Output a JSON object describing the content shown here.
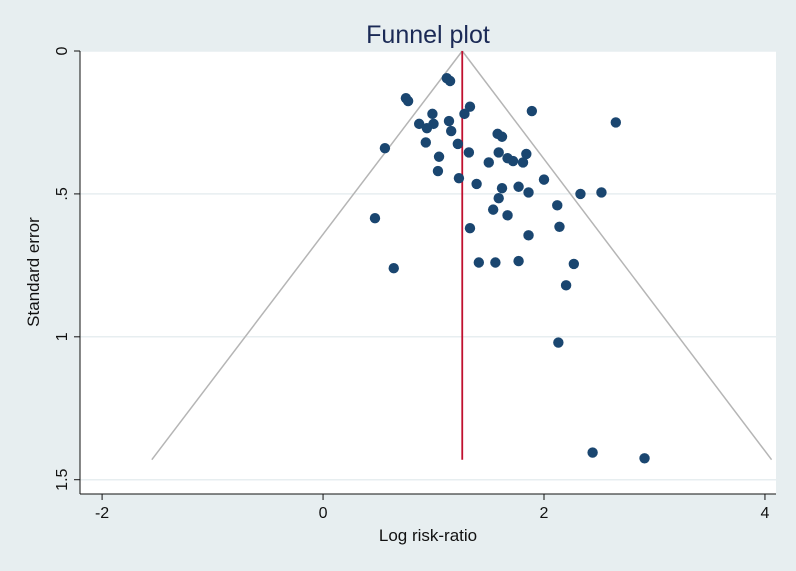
{
  "chart_data": {
    "type": "scatter",
    "title": "Funnel plot",
    "xlabel": "Log risk-ratio",
    "ylabel": "Standard error",
    "xlim": [
      -2.2,
      4.1
    ],
    "ylim": [
      0,
      1.55
    ],
    "y_inverted": true,
    "xticks": [
      -2,
      0,
      2,
      4
    ],
    "yticks": [
      0,
      0.5,
      1,
      1.5
    ],
    "ytick_labels": [
      "0",
      ".5",
      "1",
      "1.5"
    ],
    "grid": "horizontal",
    "pooled_estimate": 1.26,
    "funnel": {
      "apex": [
        1.26,
        0
      ],
      "bottom_se": 1.43,
      "left_x": -1.55,
      "right_x": 4.06
    },
    "points": [
      {
        "x": 1.12,
        "y": 0.095
      },
      {
        "x": 1.15,
        "y": 0.105
      },
      {
        "x": 0.75,
        "y": 0.165
      },
      {
        "x": 0.77,
        "y": 0.175
      },
      {
        "x": 1.33,
        "y": 0.195
      },
      {
        "x": 1.28,
        "y": 0.22
      },
      {
        "x": 1.89,
        "y": 0.21
      },
      {
        "x": 2.65,
        "y": 0.25
      },
      {
        "x": 0.87,
        "y": 0.255
      },
      {
        "x": 0.99,
        "y": 0.22
      },
      {
        "x": 1.0,
        "y": 0.255
      },
      {
        "x": 0.94,
        "y": 0.27
      },
      {
        "x": 1.14,
        "y": 0.245
      },
      {
        "x": 1.16,
        "y": 0.28
      },
      {
        "x": 1.58,
        "y": 0.29
      },
      {
        "x": 1.62,
        "y": 0.3
      },
      {
        "x": 0.56,
        "y": 0.34
      },
      {
        "x": 0.93,
        "y": 0.32
      },
      {
        "x": 1.22,
        "y": 0.325
      },
      {
        "x": 1.32,
        "y": 0.355
      },
      {
        "x": 1.05,
        "y": 0.37
      },
      {
        "x": 1.59,
        "y": 0.355
      },
      {
        "x": 1.67,
        "y": 0.375
      },
      {
        "x": 1.72,
        "y": 0.385
      },
      {
        "x": 1.84,
        "y": 0.36
      },
      {
        "x": 1.81,
        "y": 0.39
      },
      {
        "x": 1.5,
        "y": 0.39
      },
      {
        "x": 1.04,
        "y": 0.42
      },
      {
        "x": 1.23,
        "y": 0.445
      },
      {
        "x": 1.39,
        "y": 0.465
      },
      {
        "x": 2.0,
        "y": 0.45
      },
      {
        "x": 1.77,
        "y": 0.475
      },
      {
        "x": 1.62,
        "y": 0.48
      },
      {
        "x": 1.86,
        "y": 0.495
      },
      {
        "x": 1.59,
        "y": 0.515
      },
      {
        "x": 2.33,
        "y": 0.5
      },
      {
        "x": 2.52,
        "y": 0.495
      },
      {
        "x": 1.54,
        "y": 0.555
      },
      {
        "x": 2.12,
        "y": 0.54
      },
      {
        "x": 1.67,
        "y": 0.575
      },
      {
        "x": 0.47,
        "y": 0.585
      },
      {
        "x": 1.33,
        "y": 0.62
      },
      {
        "x": 2.14,
        "y": 0.615
      },
      {
        "x": 1.86,
        "y": 0.645
      },
      {
        "x": 1.41,
        "y": 0.74
      },
      {
        "x": 1.56,
        "y": 0.74
      },
      {
        "x": 1.77,
        "y": 0.735
      },
      {
        "x": 2.27,
        "y": 0.745
      },
      {
        "x": 0.64,
        "y": 0.76
      },
      {
        "x": 2.2,
        "y": 0.82
      },
      {
        "x": 2.13,
        "y": 1.02
      },
      {
        "x": 2.44,
        "y": 1.405
      },
      {
        "x": 2.91,
        "y": 1.425
      }
    ]
  },
  "colors": {
    "background": "#e7eef0",
    "plot_background": "#ffffff",
    "grid": "#e7eef0",
    "points": "#1a4670",
    "funnel": "#b5b5b5",
    "pooled_line": "#c0102f",
    "title": "#1b2a56"
  }
}
